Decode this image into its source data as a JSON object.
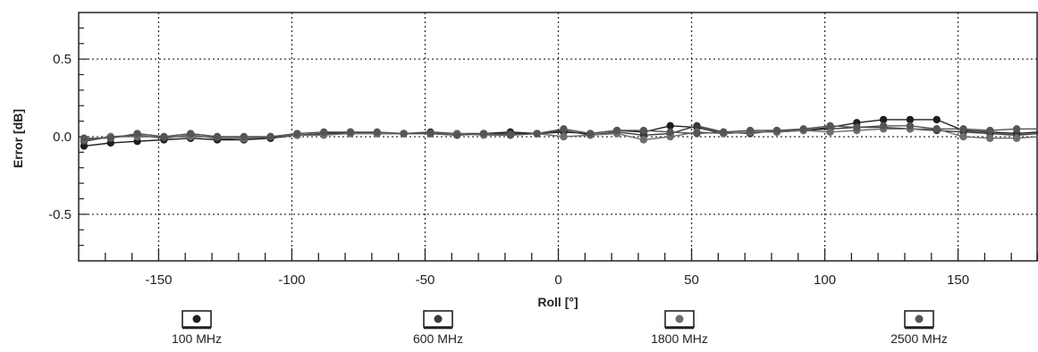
{
  "chart_data": {
    "type": "line",
    "xlabel": "Roll [°]",
    "ylabel": "Error [dB]",
    "xlim": [
      -180,
      180
    ],
    "ylim": [
      -0.8,
      0.8
    ],
    "xticks": [
      -150,
      -100,
      -50,
      0,
      50,
      100,
      150
    ],
    "yticks": [
      -0.5,
      0.0,
      0.5
    ],
    "xtick_labels": [
      "-150",
      "-100",
      "-50",
      "0",
      "50",
      "100",
      "150"
    ],
    "ytick_labels": [
      "-0.5",
      "0.0",
      "0.5"
    ],
    "grid": true,
    "legend_position": "bottom",
    "x": [
      -178,
      -168,
      -158,
      -148,
      -138,
      -128,
      -118,
      -108,
      -98,
      -88,
      -78,
      -68,
      -58,
      -48,
      -38,
      -28,
      -18,
      -8,
      2,
      12,
      22,
      32,
      42,
      52,
      62,
      72,
      82,
      92,
      102,
      112,
      122,
      132,
      142,
      152,
      162,
      172,
      180
    ],
    "series": [
      {
        "name": "100 MHz",
        "color": "#1e1e1e",
        "values": [
          -0.06,
          -0.04,
          -0.03,
          -0.02,
          -0.01,
          -0.02,
          -0.02,
          -0.01,
          0.01,
          0.02,
          0.03,
          0.02,
          0.02,
          0.02,
          0.01,
          0.02,
          0.03,
          0.02,
          0.03,
          0.02,
          0.04,
          0.03,
          0.07,
          0.06,
          0.02,
          0.03,
          0.03,
          0.04,
          0.06,
          0.09,
          0.11,
          0.11,
          0.11,
          0.04,
          0.03,
          0.02,
          0.03
        ]
      },
      {
        "name": "600 MHz",
        "color": "#3a3a3a",
        "values": [
          -0.03,
          0.0,
          0.01,
          -0.01,
          0.01,
          -0.01,
          -0.02,
          0.0,
          0.01,
          0.02,
          0.02,
          0.02,
          0.02,
          0.03,
          0.02,
          0.02,
          0.02,
          0.02,
          0.04,
          0.01,
          0.03,
          0.01,
          0.02,
          0.07,
          0.03,
          0.02,
          0.04,
          0.04,
          0.05,
          0.06,
          0.06,
          0.05,
          0.04,
          0.03,
          0.02,
          0.01,
          0.02
        ]
      },
      {
        "name": "1800 MHz",
        "color": "#6e6e6e",
        "values": [
          -0.02,
          0.0,
          0.0,
          0.0,
          0.0,
          0.0,
          -0.01,
          0.0,
          0.01,
          0.01,
          0.02,
          0.02,
          0.02,
          0.02,
          0.02,
          0.01,
          0.01,
          0.02,
          0.0,
          0.01,
          0.02,
          -0.02,
          0.0,
          0.03,
          0.02,
          0.03,
          0.03,
          0.04,
          0.03,
          0.04,
          0.05,
          0.05,
          0.05,
          0.0,
          -0.01,
          -0.01,
          0.0
        ]
      },
      {
        "name": "2500 MHz",
        "color": "#555555",
        "values": [
          -0.01,
          -0.01,
          0.02,
          0.0,
          0.02,
          0.0,
          0.0,
          0.0,
          0.02,
          0.03,
          0.03,
          0.03,
          0.02,
          0.02,
          0.01,
          0.02,
          0.01,
          0.02,
          0.05,
          0.02,
          0.04,
          0.04,
          0.03,
          0.02,
          0.03,
          0.04,
          0.04,
          0.05,
          0.07,
          0.06,
          0.07,
          0.07,
          0.05,
          0.05,
          0.04,
          0.05,
          0.05
        ]
      }
    ]
  }
}
